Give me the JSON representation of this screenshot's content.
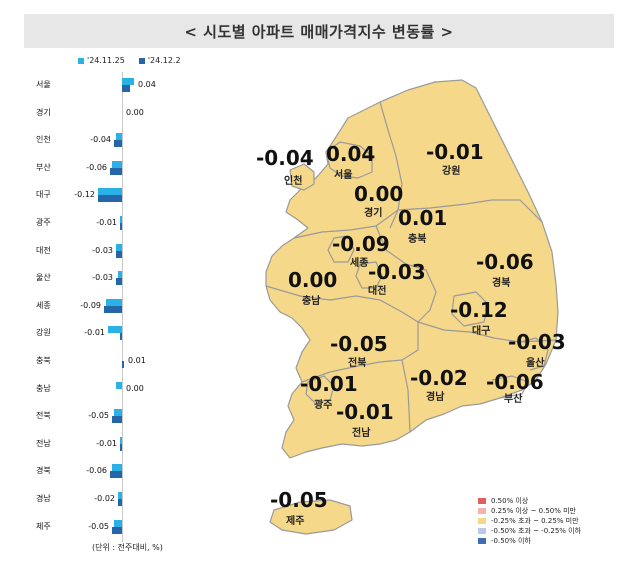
{
  "title": "< 시도별 아파트 매매가격지수 변동률 >",
  "legend_top": [
    {
      "label": "'24.11.25",
      "color": "#2ab1e6"
    },
    {
      "label": "'24.12.2",
      "color": "#2466a8"
    }
  ],
  "unit_note": "(단위 : 전주대비, %)",
  "chart_data": {
    "type": "bar",
    "categories": [
      "서울",
      "경기",
      "인천",
      "부산",
      "대구",
      "광주",
      "대전",
      "울산",
      "세종",
      "강원",
      "충북",
      "충남",
      "전북",
      "전남",
      "경북",
      "경남",
      "제주"
    ],
    "series": [
      {
        "name": "'24.11.25",
        "values": [
          0.06,
          0.0,
          -0.03,
          -0.05,
          -0.12,
          -0.01,
          -0.03,
          -0.02,
          -0.08,
          -0.07,
          0.0,
          -0.03,
          -0.04,
          -0.01,
          -0.05,
          -0.02,
          -0.04
        ]
      },
      {
        "name": "'24.12.2",
        "values": [
          0.04,
          0.0,
          -0.04,
          -0.06,
          -0.12,
          -0.01,
          -0.03,
          -0.03,
          -0.09,
          -0.01,
          0.01,
          0.0,
          -0.05,
          -0.01,
          -0.06,
          -0.02,
          -0.05
        ]
      }
    ],
    "labels": [
      "0.04",
      "0.00",
      "-0.04",
      "-0.06",
      "-0.12",
      "-0.01",
      "-0.03",
      "-0.03",
      "-0.09",
      "-0.01",
      "0.01",
      "0.00",
      "-0.05",
      "-0.01",
      "-0.06",
      "-0.02",
      "-0.05"
    ]
  },
  "map": {
    "regions": [
      {
        "name": "인천",
        "value": "-0.04"
      },
      {
        "name": "서울",
        "value": "0.04"
      },
      {
        "name": "경기",
        "value": "0.00"
      },
      {
        "name": "강원",
        "value": "-0.01"
      },
      {
        "name": "충북",
        "value": "0.01"
      },
      {
        "name": "세종",
        "value": "-0.09"
      },
      {
        "name": "대전",
        "value": "-0.03"
      },
      {
        "name": "충남",
        "value": "0.00"
      },
      {
        "name": "경북",
        "value": "-0.06"
      },
      {
        "name": "대구",
        "value": "-0.12"
      },
      {
        "name": "울산",
        "value": "-0.03"
      },
      {
        "name": "전북",
        "value": "-0.05"
      },
      {
        "name": "광주",
        "value": "-0.01"
      },
      {
        "name": "경남",
        "value": "-0.02"
      },
      {
        "name": "부산",
        "value": "-0.06"
      },
      {
        "name": "전남",
        "value": "-0.01"
      },
      {
        "name": "제주",
        "value": "-0.05"
      }
    ],
    "fill_color": "#f6d88a",
    "border_color": "#9a9a9a"
  },
  "legend_bottom": [
    {
      "label": "0.50% 이상",
      "color": "#e06060"
    },
    {
      "label": "0.25% 이상 ~ 0.50% 미만",
      "color": "#f3b4ae"
    },
    {
      "label": "-0.25% 초과 ~ 0.25% 미만",
      "color": "#f6d88a"
    },
    {
      "label": "-0.50% 초과 ~ -0.25% 이하",
      "color": "#b9c9e6"
    },
    {
      "label": "-0.50% 이하",
      "color": "#3e6fb3"
    }
  ]
}
